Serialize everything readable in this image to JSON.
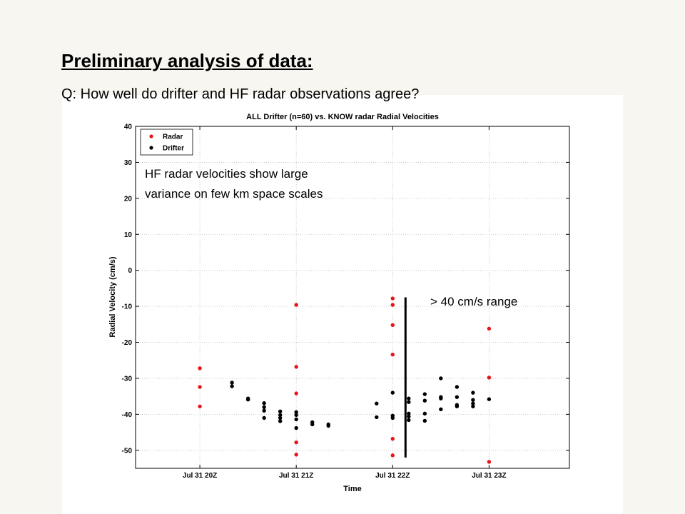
{
  "slide": {
    "title": "Preliminary analysis of data:",
    "question": "Q: How well do drifter and HF radar observations agree?"
  },
  "chart_data": {
    "type": "scatter",
    "title": "ALL Drifter (n=60) vs. KNOW radar Radial Velocities",
    "xlabel": "Time",
    "ylabel": "Radial Velocity (cm/s)",
    "x_ticks": [
      "Jul 31 20Z",
      "Jul 31 21Z",
      "Jul 31 22Z",
      "Jul 31 23Z"
    ],
    "y_ticks": [
      40,
      30,
      20,
      10,
      0,
      -10,
      -20,
      -30,
      -40,
      -50
    ],
    "xlim": [
      "Jul 31 19:20Z",
      "Jul 31 23:50Z"
    ],
    "ylim": [
      -55,
      40
    ],
    "grid": "dotted",
    "legend_position": "top-left",
    "series": [
      {
        "name": "Radar",
        "color": "#e8141a",
        "points": [
          [
            "Jul 31 20:00Z",
            -27.2
          ],
          [
            "Jul 31 20:00Z",
            -32.4
          ],
          [
            "Jul 31 20:00Z",
            -37.8
          ],
          [
            "Jul 31 21:00Z",
            -9.6
          ],
          [
            "Jul 31 21:00Z",
            -26.8
          ],
          [
            "Jul 31 21:00Z",
            -34.2
          ],
          [
            "Jul 31 21:00Z",
            -47.8
          ],
          [
            "Jul 31 21:00Z",
            -51.2
          ],
          [
            "Jul 31 22:00Z",
            -7.8
          ],
          [
            "Jul 31 22:00Z",
            -9.6
          ],
          [
            "Jul 31 22:00Z",
            -15.2
          ],
          [
            "Jul 31 22:00Z",
            -23.4
          ],
          [
            "Jul 31 22:00Z",
            -40.4
          ],
          [
            "Jul 31 22:00Z",
            -46.8
          ],
          [
            "Jul 31 22:00Z",
            -51.4
          ],
          [
            "Jul 31 23:00Z",
            -16.2
          ],
          [
            "Jul 31 23:00Z",
            -29.8
          ],
          [
            "Jul 31 23:00Z",
            -53.2
          ]
        ]
      },
      {
        "name": "Drifter",
        "color": "#000000",
        "points": [
          [
            "Jul 31 20:20Z",
            -31.2
          ],
          [
            "Jul 31 20:20Z",
            -32.2
          ],
          [
            "Jul 31 20:30Z",
            -35.6
          ],
          [
            "Jul 31 20:30Z",
            -35.9
          ],
          [
            "Jul 31 20:40Z",
            -36.9
          ],
          [
            "Jul 31 20:40Z",
            -38.0
          ],
          [
            "Jul 31 20:40Z",
            -39.0
          ],
          [
            "Jul 31 20:40Z",
            -41.0
          ],
          [
            "Jul 31 20:50Z",
            -39.2
          ],
          [
            "Jul 31 20:50Z",
            -40.2
          ],
          [
            "Jul 31 20:50Z",
            -41.0
          ],
          [
            "Jul 31 20:50Z",
            -41.9
          ],
          [
            "Jul 31 21:00Z",
            -39.4
          ],
          [
            "Jul 31 21:00Z",
            -40.2
          ],
          [
            "Jul 31 21:00Z",
            -41.4
          ],
          [
            "Jul 31 21:00Z",
            -43.8
          ],
          [
            "Jul 31 21:10Z",
            -42.2
          ],
          [
            "Jul 31 21:10Z",
            -42.8
          ],
          [
            "Jul 31 21:20Z",
            -42.8
          ],
          [
            "Jul 31 21:20Z",
            -43.2
          ],
          [
            "Jul 31 21:50Z",
            -37.0
          ],
          [
            "Jul 31 21:50Z",
            -40.8
          ],
          [
            "Jul 31 22:00Z",
            -34.0
          ],
          [
            "Jul 31 22:00Z",
            -40.4
          ],
          [
            "Jul 31 22:00Z",
            -41.0
          ],
          [
            "Jul 31 22:10Z",
            -35.6
          ],
          [
            "Jul 31 22:10Z",
            -36.6
          ],
          [
            "Jul 31 22:10Z",
            -39.8
          ],
          [
            "Jul 31 22:10Z",
            -40.6
          ],
          [
            "Jul 31 22:10Z",
            -41.6
          ],
          [
            "Jul 31 22:20Z",
            -34.4
          ],
          [
            "Jul 31 22:20Z",
            -36.2
          ],
          [
            "Jul 31 22:20Z",
            -39.8
          ],
          [
            "Jul 31 22:20Z",
            -41.8
          ],
          [
            "Jul 31 22:30Z",
            -30.0
          ],
          [
            "Jul 31 22:30Z",
            -35.2
          ],
          [
            "Jul 31 22:30Z",
            -35.6
          ],
          [
            "Jul 31 22:30Z",
            -38.6
          ],
          [
            "Jul 31 22:40Z",
            -32.4
          ],
          [
            "Jul 31 22:40Z",
            -35.2
          ],
          [
            "Jul 31 22:40Z",
            -37.4
          ],
          [
            "Jul 31 22:40Z",
            -37.8
          ],
          [
            "Jul 31 22:50Z",
            -34.0
          ],
          [
            "Jul 31 22:50Z",
            -36.0
          ],
          [
            "Jul 31 22:50Z",
            -37.0
          ],
          [
            "Jul 31 22:50Z",
            -37.8
          ],
          [
            "Jul 31 23:00Z",
            -35.8
          ]
        ]
      }
    ],
    "annotations": [
      {
        "text": "HF radar velocities show large",
        "line": 1
      },
      {
        "text": "variance on few km space scales",
        "line": 2
      },
      {
        "text": "> 40 cm/s range",
        "bracket_from": -7.5,
        "bracket_to": -52
      }
    ]
  }
}
